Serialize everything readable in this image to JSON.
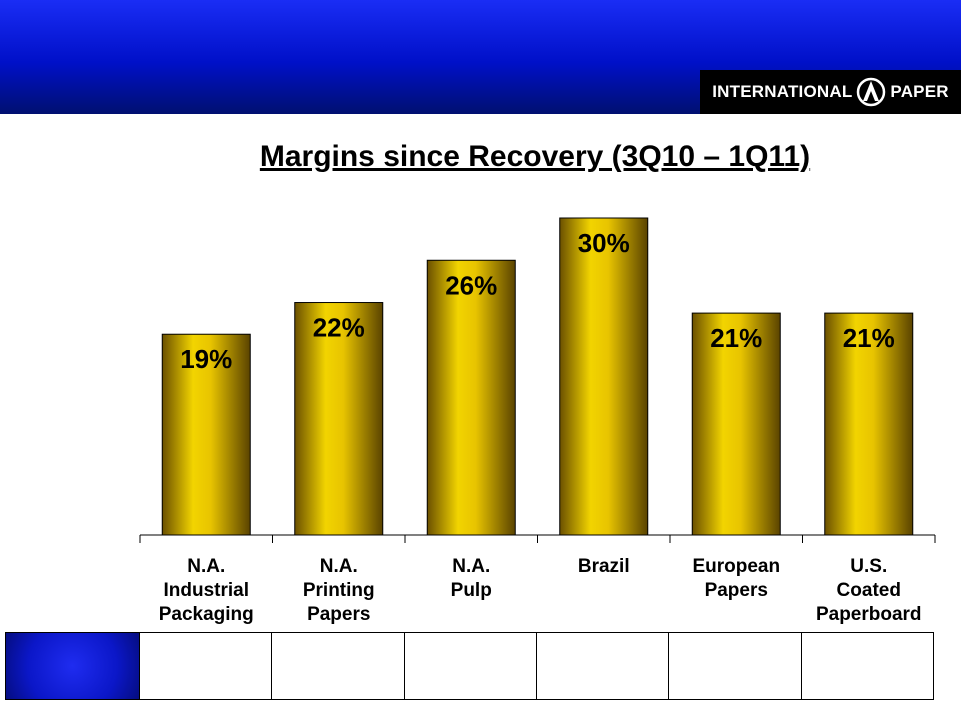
{
  "header": {
    "logo_left": "INTERNATIONAL",
    "logo_right": "PAPER"
  },
  "chart_data": {
    "type": "bar",
    "title": "Margins since Recovery (3Q10 – 1Q11)",
    "categories": [
      "N.A. Industrial Packaging",
      "N.A. Printing Papers",
      "N.A. Pulp",
      "Brazil",
      "European Papers",
      "U.S. Coated Paperboard"
    ],
    "category_lines": [
      [
        "N.A.",
        "Industrial",
        "Packaging"
      ],
      [
        "N.A.",
        "Printing",
        "Papers"
      ],
      [
        "N.A.",
        "Pulp"
      ],
      [
        "Brazil"
      ],
      [
        "European",
        "Papers"
      ],
      [
        "U.S.",
        "Coated",
        "Paperboard"
      ]
    ],
    "values": [
      19,
      22,
      26,
      30,
      21,
      21
    ],
    "value_labels": [
      "19%",
      "22%",
      "26%",
      "30%",
      "21%",
      "21%"
    ],
    "xlabel": "",
    "ylabel": "",
    "ylim": [
      0,
      30
    ],
    "grid": false,
    "bar_color": "#e0b800",
    "bar_color_dark": "#5a4300"
  }
}
